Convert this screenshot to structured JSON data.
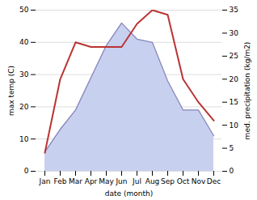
{
  "chart_data": {
    "type": "line",
    "categories": [
      "Jan",
      "Feb",
      "Mar",
      "Apr",
      "May",
      "Jun",
      "Jul",
      "Aug",
      "Sep",
      "Oct",
      "Nov",
      "Dec"
    ],
    "xlabel": "date (month)",
    "ylabel": "max temp (C)",
    "y2label": "med. precipitation (kg/m2)",
    "series": [
      {
        "type": "area",
        "color": "#c8d0f0",
        "values": [
          6,
          13,
          19,
          29,
          39,
          46,
          41,
          40,
          28,
          19,
          19,
          11
        ]
      },
      {
        "type": "line",
        "color": "#8888bb",
        "values": [
          6,
          13,
          19,
          29,
          39,
          46,
          41,
          40,
          28,
          19,
          19,
          11
        ]
      },
      {
        "type": "line",
        "color": "#bb3333",
        "axis": "y2",
        "values": [
          4,
          20,
          28,
          27,
          27,
          27,
          32,
          35,
          34,
          20,
          15,
          11
        ]
      }
    ],
    "ylim": [
      0,
      50
    ],
    "yticks": [
      0,
      10,
      20,
      30,
      40,
      50
    ],
    "y2lim": [
      0,
      35
    ],
    "y2ticks": [
      0,
      5,
      10,
      15,
      20,
      25,
      30,
      35
    ],
    "grid": true
  }
}
